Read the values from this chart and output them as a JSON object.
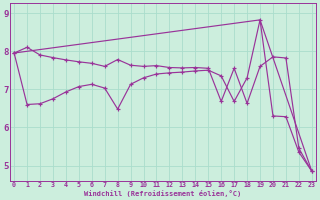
{
  "bg_color": "#cceedd",
  "line_color": "#993399",
  "grid_color": "#aaddcc",
  "xlabel": "Windchill (Refroidissement éolien,°C)",
  "xlim": [
    -0.3,
    23.3
  ],
  "ylim": [
    4.6,
    9.25
  ],
  "yticks": [
    5,
    6,
    7,
    8,
    9
  ],
  "xticks": [
    0,
    1,
    2,
    3,
    4,
    5,
    6,
    7,
    8,
    9,
    10,
    11,
    12,
    13,
    14,
    15,
    16,
    17,
    18,
    19,
    20,
    21,
    22,
    23
  ],
  "line1_x": [
    0,
    1,
    2,
    3,
    4,
    5,
    6,
    7,
    8,
    9,
    10,
    11,
    12,
    13,
    14,
    15,
    16,
    17,
    18,
    19,
    20,
    21,
    22,
    23
  ],
  "line1_y": [
    7.95,
    8.1,
    7.9,
    7.83,
    7.77,
    7.72,
    7.68,
    7.6,
    7.78,
    7.63,
    7.6,
    7.62,
    7.57,
    7.56,
    7.57,
    7.55,
    6.68,
    7.55,
    6.63,
    7.6,
    7.85,
    7.82,
    5.45,
    4.85
  ],
  "line2_x": [
    0,
    1,
    2,
    3,
    4,
    5,
    6,
    7,
    8,
    9,
    10,
    11,
    12,
    13,
    14,
    15,
    16,
    17,
    18,
    19,
    20,
    21,
    22,
    23
  ],
  "line2_y": [
    7.95,
    6.6,
    6.62,
    6.75,
    6.93,
    7.07,
    7.13,
    7.03,
    6.48,
    7.13,
    7.3,
    7.4,
    7.43,
    7.45,
    7.48,
    7.5,
    7.35,
    6.68,
    7.3,
    8.82,
    6.3,
    6.28,
    5.35,
    4.85
  ],
  "line3_x": [
    0,
    19,
    23
  ],
  "line3_y": [
    7.95,
    8.82,
    4.85
  ]
}
